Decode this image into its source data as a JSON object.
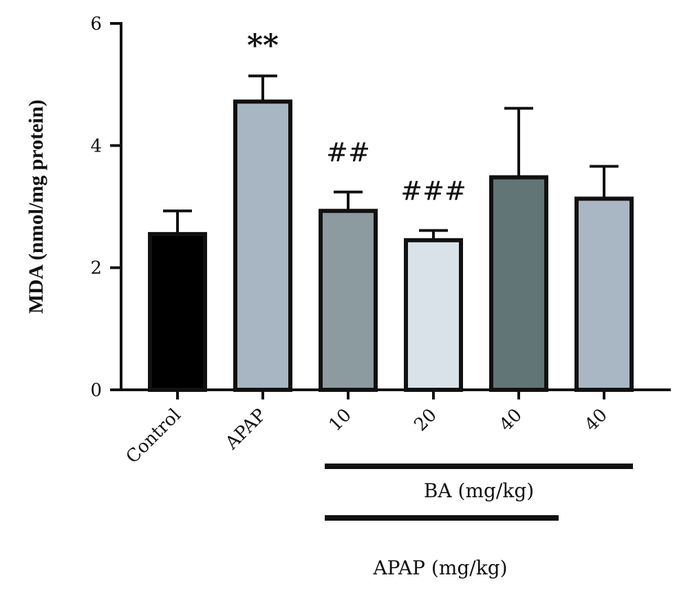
{
  "chart_data": {
    "type": "bar",
    "ylabel": "MDA (nmol/mg protein)",
    "xlabel": "",
    "ylim": [
      0,
      6
    ],
    "yticks": [
      0,
      2,
      4,
      6
    ],
    "grid": false,
    "categories": [
      "Control",
      "APAP",
      "10",
      "20",
      "40",
      "40"
    ],
    "values": [
      2.55,
      4.72,
      2.93,
      2.45,
      3.48,
      3.13
    ],
    "errors": [
      0.38,
      0.42,
      0.31,
      0.16,
      1.13,
      0.53
    ],
    "colors": [
      "#000000",
      "#a7b6c2",
      "#8c9ba0",
      "#d9e2e8",
      "#627576",
      "#a8b7c3"
    ],
    "annotations": [
      "",
      "**",
      "##",
      "###",
      "",
      ""
    ],
    "groups": [
      {
        "label": "BA (mg/kg)",
        "from": 2,
        "to": 5
      },
      {
        "label": "APAP (mg/kg)",
        "from": 2,
        "to": 4
      }
    ]
  }
}
